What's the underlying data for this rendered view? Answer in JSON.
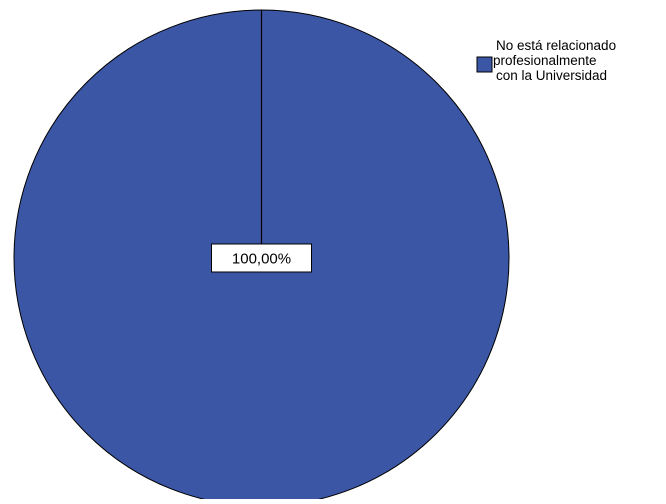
{
  "chart_data": {
    "type": "pie",
    "title": "",
    "slices": [
      {
        "label": "No está relacionado profesionalmente con la Universidad",
        "value": 100.0,
        "display_label": "100,00%",
        "color": "#3c56a6"
      }
    ],
    "legend": {
      "position": "top-right",
      "entries": [
        {
          "lines": [
            "No está relacionado",
            "profesionalmente",
            "con la Universidad"
          ],
          "color": "#3c56a6"
        }
      ]
    },
    "colors": {
      "slice_stroke": "#000000",
      "label_box_fill": "#ffffff",
      "label_box_stroke": "#000000"
    }
  }
}
